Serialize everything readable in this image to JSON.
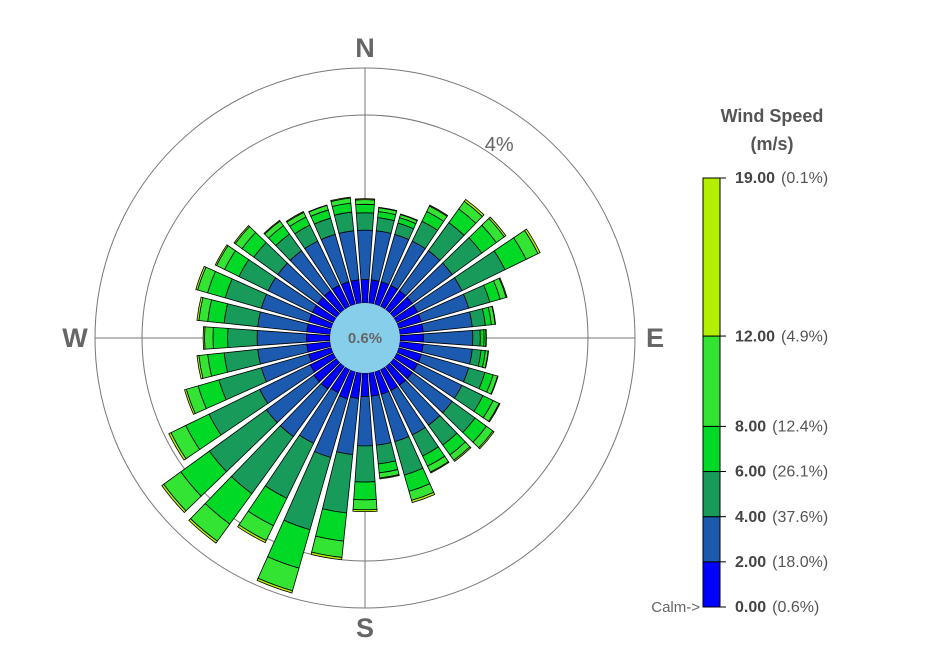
{
  "chart_data": {
    "type": "windrose",
    "legend_title": "Wind Speed",
    "legend_unit": "(m/s)",
    "calm": {
      "value": 0.6,
      "label": "0.6%"
    },
    "calm_color": "#87ceeb",
    "calm_label": "Calm->",
    "compass": [
      {
        "value": 0,
        "label": "N"
      },
      {
        "value": 90,
        "label": "E"
      },
      {
        "value": 180,
        "label": "S"
      },
      {
        "value": 270,
        "label": "W"
      }
    ],
    "rlim": [
      0,
      5
    ],
    "rticks": [
      {
        "value": 4,
        "label": "4%"
      }
    ],
    "speed_lim": [
      0,
      19
    ],
    "speed_ticks": [
      {
        "value": 0,
        "label": "0.00"
      },
      {
        "value": 2,
        "label": "2.00"
      },
      {
        "value": 4,
        "label": "4.00"
      },
      {
        "value": 6,
        "label": "6.00"
      },
      {
        "value": 8,
        "label": "8.00"
      },
      {
        "value": 12,
        "label": "12.00"
      },
      {
        "value": 19,
        "label": "19.00"
      }
    ],
    "speed_percents": [
      {
        "value": 0.6,
        "label": "(0.6%)"
      },
      {
        "value": 18.0,
        "label": "(18.0%)"
      },
      {
        "value": 37.6,
        "label": "(37.6%)"
      },
      {
        "value": 26.1,
        "label": "(26.1%)"
      },
      {
        "value": 12.4,
        "label": "(12.4%)"
      },
      {
        "value": 4.9,
        "label": "(4.9%)"
      },
      {
        "value": 0.1,
        "label": "(0.1%)"
      }
    ],
    "x": [
      0,
      10,
      20,
      30,
      40,
      50,
      60,
      70,
      80,
      90,
      100,
      110,
      120,
      130,
      140,
      150,
      160,
      170,
      180,
      190,
      200,
      210,
      220,
      230,
      240,
      250,
      260,
      270,
      280,
      290,
      300,
      310,
      320,
      330,
      340,
      350
    ],
    "series": [
      {
        "color": "#0000ff",
        "values": [
          0.5,
          0.5,
          0.5,
          0.5,
          0.5,
          0.5,
          0.5,
          0.5,
          0.5,
          0.5,
          0.5,
          0.5,
          0.5,
          0.5,
          0.5,
          0.5,
          0.5,
          0.5,
          0.5,
          0.55,
          0.6,
          0.55,
          0.6,
          0.6,
          0.55,
          0.5,
          0.5,
          0.5,
          0.5,
          0.5,
          0.5,
          0.5,
          0.5,
          0.5,
          0.5,
          0.5
        ]
      },
      {
        "color": "#1c5ab0",
        "values": [
          1.05,
          1.05,
          1.05,
          1.05,
          1.05,
          1.05,
          1.05,
          1.05,
          1.05,
          1.05,
          1.05,
          1.05,
          1.05,
          1.05,
          1.05,
          1.05,
          1.05,
          1.05,
          1.05,
          1.2,
          1.3,
          1.2,
          1.25,
          1.25,
          1.2,
          1.05,
          1.05,
          1.05,
          1.05,
          1.05,
          1.05,
          1.05,
          1.05,
          1.05,
          1.05,
          1.05
        ]
      },
      {
        "color": "#179a5a",
        "values": [
          0.37,
          0.28,
          0.25,
          0.47,
          0.74,
          0.78,
          1.02,
          0.47,
          0.28,
          0.16,
          0.19,
          0.36,
          0.5,
          0.6,
          0.52,
          0.5,
          0.74,
          0.4,
          0.77,
          1.25,
          1.6,
          1.3,
          1.5,
          1.5,
          1.2,
          0.94,
          0.72,
          0.63,
          0.72,
          0.8,
          0.69,
          0.63,
          0.44,
          0.38,
          0.36,
          0.4
        ]
      },
      {
        "color": "#00d926",
        "values": [
          0.18,
          0.13,
          0.12,
          0.23,
          0.36,
          0.38,
          0.5,
          0.23,
          0.13,
          0.08,
          0.09,
          0.18,
          0.24,
          0.3,
          0.26,
          0.24,
          0.36,
          0.19,
          0.38,
          0.6,
          0.85,
          0.65,
          0.8,
          0.75,
          0.55,
          0.46,
          0.35,
          0.31,
          0.35,
          0.39,
          0.34,
          0.31,
          0.22,
          0.19,
          0.18,
          0.19
        ]
      },
      {
        "color": "#33e433",
        "values": [
          0.1,
          0.08,
          0.07,
          0.13,
          0.2,
          0.21,
          0.28,
          0.13,
          0.08,
          0.04,
          0.06,
          0.1,
          0.14,
          0.17,
          0.14,
          0.14,
          0.2,
          0.11,
          0.21,
          0.35,
          0.5,
          0.35,
          0.45,
          0.45,
          0.35,
          0.26,
          0.19,
          0.18,
          0.19,
          0.22,
          0.19,
          0.18,
          0.12,
          0.11,
          0.1,
          0.11
        ]
      },
      {
        "color": "#b2f000",
        "values": [
          0.02,
          0.01,
          0.01,
          0.02,
          0.05,
          0.04,
          0.05,
          0.02,
          0.01,
          0.01,
          0.01,
          0.01,
          0.02,
          0.03,
          0.03,
          0.02,
          0.05,
          0.02,
          0.04,
          0.05,
          0.05,
          0.05,
          0.05,
          0.05,
          0.05,
          0.04,
          0.04,
          0.03,
          0.04,
          0.04,
          0.03,
          0.03,
          0.02,
          0.02,
          0.01,
          0.02
        ]
      }
    ]
  }
}
